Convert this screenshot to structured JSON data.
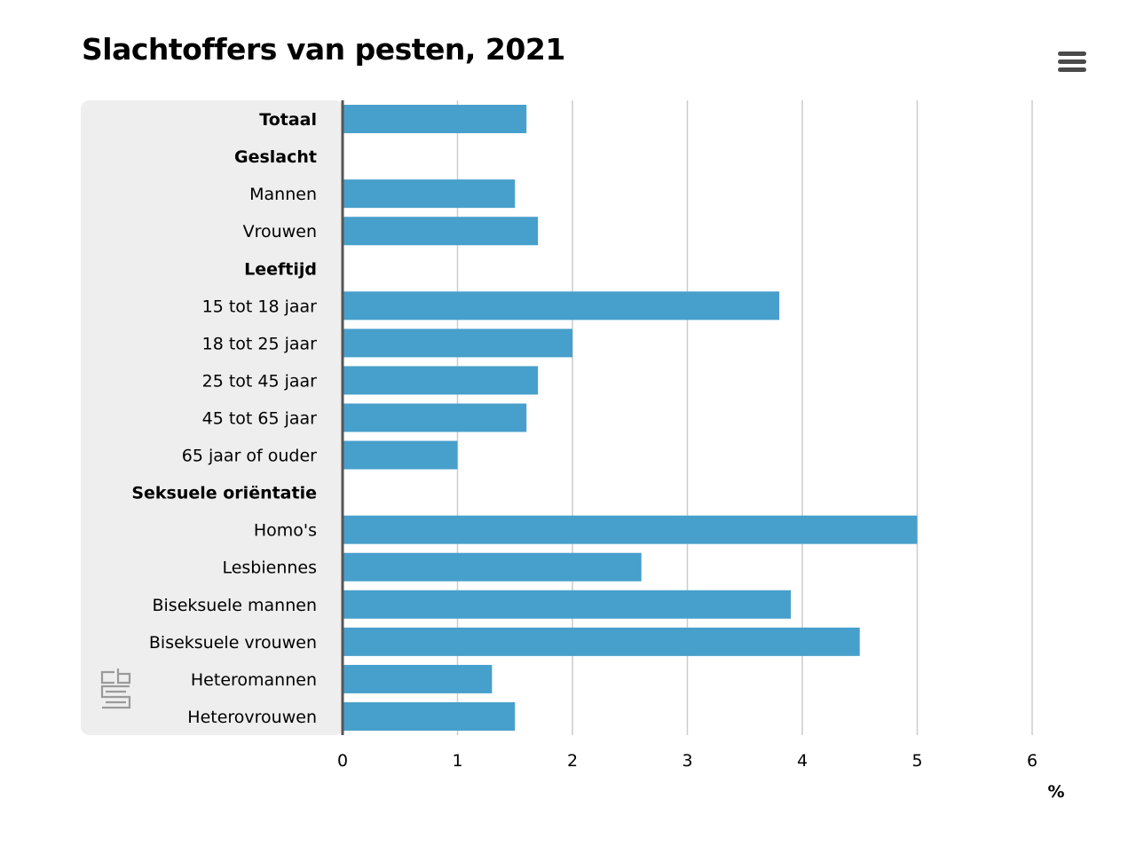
{
  "chart_data": {
    "type": "bar",
    "orientation": "horizontal",
    "title": "Slachtoffers van pesten, 2021",
    "categories": [
      "Totaal",
      "Geslacht",
      "Mannen",
      "Vrouwen",
      "Leeftijd",
      "15 tot 18 jaar",
      "18 tot 25 jaar",
      "25 tot 45 jaar",
      "45 tot 65 jaar",
      "65 jaar of ouder",
      "Seksuele oriëntatie",
      "Homo's",
      "Lesbiennes",
      "Biseksuele mannen",
      "Biseksuele vrouwen",
      "Heteromannen",
      "Heterovrouwen"
    ],
    "bold_categories": [
      "Totaal",
      "Geslacht",
      "Leeftijd",
      "Seksuele oriëntatie"
    ],
    "values": [
      1.6,
      null,
      1.5,
      1.7,
      null,
      3.8,
      2.0,
      1.7,
      1.6,
      1.0,
      null,
      5.0,
      2.6,
      3.9,
      4.5,
      1.3,
      1.5
    ],
    "xlim": [
      0,
      6
    ],
    "xticks": [
      "0",
      "1",
      "2",
      "3",
      "4",
      "5",
      "6"
    ],
    "unit_label": "%",
    "grid": true,
    "legend": "none",
    "bar_color": "#479fcb",
    "label_panel_color": "#eeeeee",
    "axis_color": "#555555",
    "grid_color": "#cccccc",
    "logo": "cbs"
  },
  "menu": {
    "icon": "hamburger-menu-icon"
  }
}
